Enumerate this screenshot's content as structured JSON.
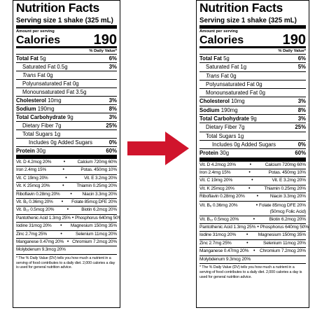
{
  "left": {
    "title": "Nutrition Facts",
    "serving": "Serving size 1 shake (325 mL)",
    "amount_label": "Amount per serving",
    "calories_label": "Calories",
    "calories_value": "190",
    "dv_header": "% Daily Value*",
    "total_fat": {
      "name": "Total Fat",
      "amount": "5g",
      "pct": "6%"
    },
    "sat_fat": {
      "name": "Saturated Fat",
      "amount": "0.5g",
      "pct": "3%"
    },
    "trans_fat": {
      "name": "Trans",
      "rest": " Fat 0g"
    },
    "poly_fat": {
      "name": "Polyunsaturated Fat 0g"
    },
    "mono_fat": {
      "name": "Monounsaturated Fat 3.5g"
    },
    "cholesterol": {
      "name": "Cholesterol",
      "amount": "10mg",
      "pct": "3%"
    },
    "sodium": {
      "name": "Sodium",
      "amount": "190mg",
      "pct": "8%"
    },
    "carb": {
      "name": "Total Carbohydrate",
      "amount": "9g",
      "pct": "3%"
    },
    "fiber": {
      "name": "Dietary Fiber 7g",
      "pct": "25%"
    },
    "sugars": {
      "name": "Total Sugars 1g"
    },
    "added": {
      "name": "Includes 0g Added Sugars",
      "pct": "0%"
    },
    "protein": {
      "name": "Protein",
      "amount": "30g",
      "pct": "60%"
    },
    "vitamins": [
      [
        "Vit. D 4.2mcg 20%",
        "Calcium 720mg 60%"
      ],
      [
        "Iron 2.4mg 15%",
        "Potas. 450mg 10%"
      ],
      [
        "Vit. C 19mg 20%",
        "Vit. E 3.2mg 20%"
      ],
      [
        "Vit. K 25mcg 20%",
        "Thiamin 0.25mg 20%"
      ],
      [
        "Riboflavin 0.28mg 20%",
        "Niacin 3.3mg 20%"
      ],
      [
        "Vit. B₆ 0.36mg 20%",
        "Folate 85mcg DFE 20%"
      ],
      [
        "Vit. B₁₂ 0.5mcg 20%",
        "Biotin 6.2mcg 20%"
      ],
      [
        "Pantothenic Acid 1.3mg 25%",
        "Phosphorus 640mg 50%"
      ],
      [
        "Iodine 31mcg 20%",
        "Magnesium 150mg 35%"
      ],
      [
        "Zinc 2.7mg 25%",
        "Selenium 11mcg 20%"
      ],
      [
        "Manganese 0.47mg 20%",
        "Chromium 7.2mcg 20%"
      ]
    ],
    "vitamin_last": "Molybdenum 9.3mcg 20%",
    "footnote": "* The % Daily Value (DV) tells you how much a nutrient in a serving of food contributes to a daily diet. 2,000 calories a day is used for general nutrition advice."
  },
  "right": {
    "title": "Nutrition Facts",
    "serving": "Serving size 1 shake (325 mL)",
    "amount_label": "Amount per serving",
    "calories_label": "Calories",
    "calories_value": "190",
    "dv_header": "% Daily Value*",
    "total_fat": {
      "name": "Total Fat",
      "amount": "5g",
      "pct": "6%"
    },
    "sat_fat": {
      "name": "Saturated Fat",
      "amount": "1g",
      "pct": "5%"
    },
    "trans_fat": {
      "name": "Trans",
      "rest": " Fat 0g"
    },
    "poly_fat": {
      "name": "Polyunsaturated Fat 0g"
    },
    "mono_fat": {
      "name": "Monounsaturated Fat 0g"
    },
    "cholesterol": {
      "name": "Cholesterol",
      "amount": "10mg",
      "pct": "3%"
    },
    "sodium": {
      "name": "Sodium",
      "amount": "190mg",
      "pct": "8%"
    },
    "carb": {
      "name": "Total Carbohydrate",
      "amount": "9g",
      "pct": "3%"
    },
    "fiber": {
      "name": "Dietary Fiber 7g",
      "pct": "25%"
    },
    "sugars": {
      "name": "Total Sugars 1g"
    },
    "added": {
      "name": "Includes 0g Added Sugars",
      "pct": "0%"
    },
    "protein": {
      "name": "Protein",
      "amount": "30g",
      "pct": "60%"
    },
    "vitamins": [
      [
        "Vit. D 4.2mcg 20%",
        "Calcium 720mg 60%"
      ],
      [
        "Iron 2.4mg 15%",
        "Potas. 450mg 10%"
      ],
      [
        "Vit. C 19mg 20%",
        "Vit. E 3.2mg 20%"
      ],
      [
        "Vit. K 25mcg 20%",
        "Thiamin 0.25mg 20%"
      ],
      [
        "Riboflavin 0.28mg 20%",
        "Niacin 3.3mg 20%"
      ]
    ],
    "folate_left": "Vit. B₆ 0.36mg 20%",
    "folate_right_1": "Folate 85mcg DFE 20%",
    "folate_right_2": "(50mcg Folic Acid)",
    "vitamins_2": [
      [
        "Vit. B₁₂ 0.5mcg 20%",
        "Biotin 6.2mcg 20%"
      ],
      [
        "Pantothenic Acid 1.3mg 25%",
        "Phosphorus 640mg 50%"
      ],
      [
        "Iodine 31mcg 20%",
        "Magnesium 150mg 35%"
      ],
      [
        "Zinc 2.7mg 25%",
        "Selenium 11mcg 20%"
      ],
      [
        "Manganese 0.47mg 20%",
        "Chromium 7.2mcg 20%"
      ]
    ],
    "vitamin_last": "Molybdenum 9.3mcg 20%",
    "footnote": "* The % Daily Value (DV) tells you how much a nutrient in a serving of food contributes to a daily diet. 2,000 calories a day is used for general nutrition advice."
  },
  "arrow_color": "#d0142c"
}
